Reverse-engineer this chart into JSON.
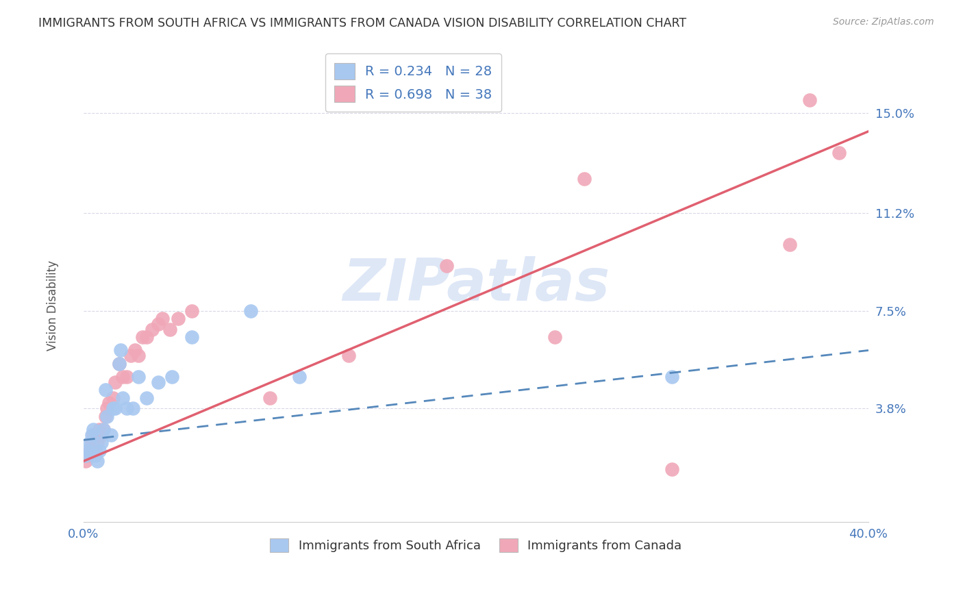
{
  "title": "IMMIGRANTS FROM SOUTH AFRICA VS IMMIGRANTS FROM CANADA VISION DISABILITY CORRELATION CHART",
  "source": "Source: ZipAtlas.com",
  "ylabel": "Vision Disability",
  "xmin": 0.0,
  "xmax": 0.4,
  "ymin": -0.005,
  "ymax": 0.175,
  "yticks": [
    0.038,
    0.075,
    0.112,
    0.15
  ],
  "ytick_labels": [
    "3.8%",
    "7.5%",
    "11.2%",
    "15.0%"
  ],
  "xticks": [
    0.0,
    0.1,
    0.2,
    0.3,
    0.4
  ],
  "xtick_labels": [
    "0.0%",
    "",
    "",
    "",
    "40.0%"
  ],
  "background_color": "#ffffff",
  "grid_color": "#d8d8e8",
  "south_africa_color": "#a8c8f0",
  "canada_color": "#f0a8b8",
  "south_africa_line_color": "#5588bb",
  "canada_line_color": "#e06070",
  "R_south_africa": 0.234,
  "N_south_africa": 28,
  "R_canada": 0.698,
  "N_canada": 38,
  "sa_line_start_y": 0.026,
  "sa_line_end_y": 0.06,
  "ca_line_start_y": 0.018,
  "ca_line_end_y": 0.143,
  "south_africa_x": [
    0.001,
    0.002,
    0.003,
    0.004,
    0.005,
    0.006,
    0.007,
    0.008,
    0.009,
    0.01,
    0.011,
    0.012,
    0.014,
    0.015,
    0.016,
    0.018,
    0.019,
    0.02,
    0.022,
    0.025,
    0.028,
    0.032,
    0.038,
    0.045,
    0.055,
    0.085,
    0.11,
    0.3
  ],
  "south_africa_y": [
    0.02,
    0.022,
    0.025,
    0.028,
    0.03,
    0.02,
    0.018,
    0.022,
    0.025,
    0.03,
    0.045,
    0.035,
    0.028,
    0.038,
    0.038,
    0.055,
    0.06,
    0.042,
    0.038,
    0.038,
    0.05,
    0.042,
    0.048,
    0.05,
    0.065,
    0.075,
    0.05,
    0.05
  ],
  "canada_x": [
    0.001,
    0.002,
    0.003,
    0.004,
    0.005,
    0.006,
    0.007,
    0.008,
    0.009,
    0.01,
    0.011,
    0.012,
    0.013,
    0.015,
    0.016,
    0.018,
    0.02,
    0.022,
    0.024,
    0.026,
    0.028,
    0.03,
    0.032,
    0.035,
    0.038,
    0.04,
    0.044,
    0.048,
    0.055,
    0.095,
    0.135,
    0.185,
    0.24,
    0.255,
    0.3,
    0.36,
    0.37,
    0.385
  ],
  "canada_y": [
    0.018,
    0.02,
    0.022,
    0.025,
    0.028,
    0.022,
    0.025,
    0.03,
    0.028,
    0.03,
    0.035,
    0.038,
    0.04,
    0.042,
    0.048,
    0.055,
    0.05,
    0.05,
    0.058,
    0.06,
    0.058,
    0.065,
    0.065,
    0.068,
    0.07,
    0.072,
    0.068,
    0.072,
    0.075,
    0.042,
    0.058,
    0.092,
    0.065,
    0.125,
    0.015,
    0.1,
    0.155,
    0.135
  ],
  "watermark": "ZIPatlas",
  "watermark_color": "#c8d8f0"
}
